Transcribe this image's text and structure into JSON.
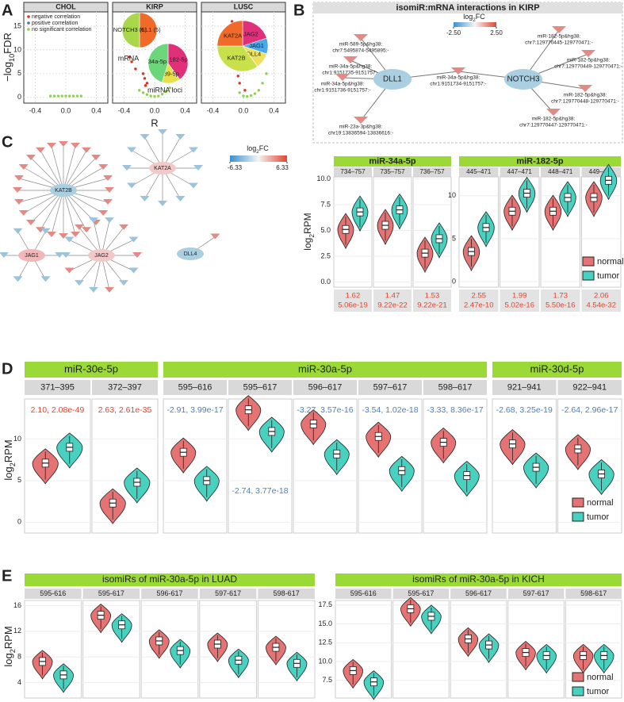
{
  "panel_a": {
    "letter": "A",
    "y_label": [
      "−log",
      "10",
      "FDR"
    ],
    "x_label": "R",
    "xlim": [
      -0.55,
      0.55
    ],
    "ylim": [
      -1.2,
      18
    ],
    "xticks": [
      -0.4,
      {
        "value": 0,
        "label": "0.0"
      },
      0.4
    ],
    "yticks": [
      0,
      5,
      10,
      15
    ],
    "grid": true,
    "legend": [
      {
        "label": "negative correlation",
        "color": "#e0301e"
      },
      {
        "label": "positive correlation",
        "color": "#5b6c9a"
      },
      {
        "label": "no significant correlation",
        "color": "#8fd14f"
      }
    ],
    "panels": [
      {
        "title": "CHOL",
        "groups": [
          {
            "x": [],
            "y": []
          },
          {
            "x": [],
            "y": []
          },
          {
            "x": [
              -0.2,
              -0.15,
              -0.1,
              -0.05,
              0,
              0.05,
              0.1,
              0.15,
              0.2
            ],
            "y": [
              0.3,
              0.3,
              0.3,
              0.3,
              0.3,
              0.3,
              0.3,
              0.3,
              0.3
            ]
          }
        ]
      },
      {
        "title": "KIRP",
        "groups": [
          {
            "x": [
              -0.12,
              -0.13,
              -0.15,
              -0.1,
              -0.25,
              -0.3,
              -0.33
            ],
            "y": [
              2.5,
              4,
              5,
              3,
              6,
              7.5,
              8.5
            ]
          },
          {
            "x": [],
            "y": []
          },
          {
            "x": [
              -0.2,
              -0.15,
              -0.1,
              -0.05,
              0,
              0.05,
              0.1,
              0.15,
              0.2
            ],
            "y": [
              1.5,
              1,
              0.6,
              0.3,
              0.2,
              0.3,
              0.7,
              1.2,
              2
            ]
          }
        ],
        "pies": [
          {
            "labels": [
              "DLL1 (5)",
              "NOTCH3 (5)"
            ],
            "shares": [
              5,
              5
            ],
            "colors": [
              "#f06a2a",
              "#a8d84a"
            ],
            "caption": "mRNA"
          },
          {
            "labels": [
              "182-5p",
              "589-5p",
              "34a-5p"
            ],
            "shares": [
              40,
              15,
              45
            ],
            "colors": [
              "#e0307a",
              "#e8e04a",
              "#6cd67a"
            ],
            "caption": "miRNA loci"
          }
        ]
      },
      {
        "title": "LUSC",
        "groups": [
          {
            "x": [
              0.02,
              -0.05,
              -0.07,
              -0.09,
              -0.1,
              -0.12,
              -0.13,
              -0.15
            ],
            "y": [
              1.5,
              3,
              4.5,
              6,
              8,
              11,
              13,
              16
            ]
          },
          {
            "x": [],
            "y": []
          },
          {
            "x": [
              -0.05,
              0,
              0.05,
              0.1,
              0.15,
              0.2,
              0.25,
              0.3
            ],
            "y": [
              1,
              0.3,
              0.2,
              0.4,
              0.8,
              1.5,
              3,
              5
            ]
          }
        ],
        "pies": [
          {
            "labels": [
              "JAG2",
              "JAG1",
              "DLL4",
              "KAT2B",
              "KAT2A"
            ],
            "shares": [
              20,
              10,
              10,
              35,
              25
            ],
            "colors": [
              "#e0307a",
              "#4aa8e8",
              "#f0e060",
              "#c8e04a",
              "#f06a2a"
            ]
          }
        ]
      }
    ]
  },
  "panel_b": {
    "letter": "B",
    "title": "isomiR:mRNA interactions in KIRP",
    "legend_title": [
      "log",
      "2",
      "FC"
    ],
    "legend_ticks": [
      {
        "value": -2.5,
        "label": "-2.50"
      },
      {
        "value": 2.5,
        "label": "2.50"
      }
    ],
    "genes": [
      "DLL1",
      "NOTCH3"
    ],
    "isomirs": [
      [
        "miR-589-5p&hg38:",
        "chr7:5495874-5495895:-"
      ],
      [
        "miR-34a-5p&hg38:",
        "chr1:9151735-9151757:-"
      ],
      [
        "miR-34a-5p&hg38:",
        "chr1:9151736-9151757:-"
      ],
      [
        "miR-23a-3p&hg38:",
        "chr19:13836594-13836616:-"
      ],
      [
        "miR-34a-5p&hg38:",
        "chr1:9151734-9151757:-"
      ],
      [
        "miR-182-5p&hg38:",
        "chr7:129770445-129770471:-"
      ],
      [
        "miR-182-5p&hg38:",
        "chr7:129770449-129770471:-"
      ],
      [
        "miR-182-5p&hg38:",
        "chr7:129770448-129770471:-"
      ],
      [
        "miR-182-5p&hg38:",
        "chr7:129770447-129770471:-"
      ]
    ]
  },
  "panel_b_violin": {
    "y_label": [
      "log",
      "2",
      "RPM"
    ],
    "legend": [
      "normal",
      "tumor"
    ],
    "colors": [
      "#e57373",
      "#48d1bf"
    ],
    "stat_color": "#e0452f",
    "groups": [
      {
        "label": "miR-34a-5p",
        "ylim": [
          -0.5,
          10.2
        ],
        "yticks": [
          {
            "value": 0,
            "label": "0.0"
          },
          {
            "value": 2.5,
            "label": "2.5"
          },
          {
            "value": 5,
            "label": "5.0"
          },
          {
            "value": 7.5,
            "label": "7.5"
          },
          {
            "value": 10,
            "label": "10.0"
          }
        ],
        "facets": [
          {
            "label": "734–757",
            "medians": [
              5.1,
              6.8
            ],
            "stats": [
              "1.62",
              "5.06e-19"
            ]
          },
          {
            "label": "735–757",
            "medians": [
              5.5,
              7.0
            ],
            "stats": [
              "1.47",
              "9.22e-22"
            ]
          },
          {
            "label": "736–757",
            "medians": [
              2.8,
              4.2
            ],
            "stats": [
              "1.53",
              "9.22e-21"
            ]
          }
        ]
      },
      {
        "label": "miR-182-5p",
        "ylim": [
          -0.65,
          12.2
        ],
        "yticks": [
          0,
          5,
          10
        ],
        "facets": [
          {
            "label": "445–471",
            "medians": [
              3.5,
              6.3
            ],
            "stats": [
              "2.55",
              "2.47e-10"
            ]
          },
          {
            "label": "447–471",
            "medians": [
              8.2,
              10.3
            ],
            "stats": [
              "1.99",
              "5.02e-16"
            ]
          },
          {
            "label": "448–471",
            "medians": [
              8.2,
              9.8
            ],
            "stats": [
              "1.73",
              "5.50e-16"
            ]
          },
          {
            "label": "449–471",
            "medians": [
              9.8,
              11.8
            ],
            "stats": [
              "2.06",
              "4.54e-32"
            ]
          }
        ]
      }
    ]
  },
  "panel_c": {
    "letter": "C",
    "legend_title": [
      "log",
      "2",
      "FC"
    ],
    "legend_ticks": [
      {
        "value": -6.33,
        "label": "-6.33"
      },
      6.33
    ],
    "genes": [
      "KAT2B",
      "KAT2A",
      "JAG1",
      "JAG2",
      "DLL4"
    ]
  },
  "panel_d": {
    "letter": "D",
    "y_label": [
      "log",
      "2",
      "RPM"
    ],
    "ylim": [
      -1.3,
      14.8
    ],
    "yticks": [
      0,
      5,
      10
    ],
    "legend": [
      "normal",
      "tumor"
    ],
    "colors": [
      "#e57373",
      "#48d1bf"
    ],
    "groups": [
      {
        "label": "miR-30e-5p",
        "facets": [
          {
            "label": "371–395",
            "medians": [
              7.1,
              9.0
            ],
            "stat": "2.10, 2.08e-49",
            "stat_position": "top",
            "stat_color": "#e0452f"
          },
          {
            "label": "372–397",
            "medians": [
              2.3,
              4.8
            ],
            "stat": "2.63, 2.61e-35",
            "stat_position": "top",
            "stat_color": "#e0452f"
          }
        ]
      },
      {
        "label": "miR-30a-5p",
        "facets": [
          {
            "label": "595–616",
            "medians": [
              8.4,
              5.0
            ],
            "stat": "-2.91, 3.99e-17",
            "stat_position": "top",
            "stat_color": "#4a7fc1"
          },
          {
            "label": "595–617",
            "medians": [
              13.5,
              10.9
            ],
            "stat": "-2.74, 3.77e-18",
            "stat_position": "bottom",
            "stat_color": "#4a7fc1"
          },
          {
            "label": "596–617",
            "medians": [
              11.8,
              8.2
            ],
            "stat": "-3.27, 3.57e-16",
            "stat_position": "top",
            "stat_color": "#4a7fc1"
          },
          {
            "label": "597–617",
            "medians": [
              10.3,
              6.2
            ],
            "stat": "-3.54, 1.02e-18",
            "stat_position": "top",
            "stat_color": "#4a7fc1"
          },
          {
            "label": "598–617",
            "medians": [
              9.6,
              5.6
            ],
            "stat": "-3.33, 8.36e-17",
            "stat_position": "top",
            "stat_color": "#4a7fc1"
          }
        ]
      },
      {
        "label": "miR-30d-5p",
        "facets": [
          {
            "label": "921–941",
            "medians": [
              9.4,
              6.6
            ],
            "stat": "-2.68, 3.25e-19",
            "stat_position": "top",
            "stat_color": "#4a7fc1"
          },
          {
            "label": "922–941",
            "medians": [
              8.8,
              5.8
            ],
            "stat": "-2.64, 2.96e-17",
            "stat_position": "top",
            "stat_color": "#4a7fc1"
          }
        ]
      }
    ]
  },
  "panel_e": {
    "letter": "E",
    "y_label": [
      "log",
      "2",
      "RPM"
    ],
    "legend": [
      "normal",
      "tumor"
    ],
    "colors": [
      "#e57373",
      "#48d1bf"
    ],
    "panels": [
      {
        "title": "isomiRs of miR-30a-5p in LUAD",
        "ylim": [
          1.6,
          16.8
        ],
        "yticks": [
          4,
          8,
          12,
          16
        ],
        "facets": [
          {
            "label": "595-616",
            "medians": [
              7.3,
              5.2
            ]
          },
          {
            "label": "595-617",
            "medians": [
              14.5,
              13.0
            ]
          },
          {
            "label": "596-617",
            "medians": [
              10.5,
              9.0
            ]
          },
          {
            "label": "597-617",
            "medians": [
              10.0,
              7.5
            ]
          },
          {
            "label": "598-617",
            "medians": [
              9.5,
              7.0
            ]
          }
        ]
      },
      {
        "title": "isomiRs of miR-30a-5p in KICH",
        "ylim": [
          5.16,
          18.1
        ],
        "yticks": [
          {
            "value": 7.5,
            "label": "7.5"
          },
          {
            "value": 10,
            "label": "10.0"
          },
          {
            "value": 12.5,
            "label": "12.5"
          },
          {
            "value": 15,
            "label": "15.0"
          },
          {
            "value": 17.5,
            "label": "17.5"
          }
        ],
        "facets": [
          {
            "label": "595-616",
            "medians": [
              8.8,
              7.3
            ]
          },
          {
            "label": "595-617",
            "medians": [
              17.0,
              16.0
            ]
          },
          {
            "label": "596-617",
            "medians": [
              13.0,
              12.2
            ]
          },
          {
            "label": "597-617",
            "medians": [
              11.2,
              10.8
            ]
          },
          {
            "label": "598-617",
            "medians": [
              10.8,
              10.8
            ]
          }
        ]
      }
    ]
  }
}
